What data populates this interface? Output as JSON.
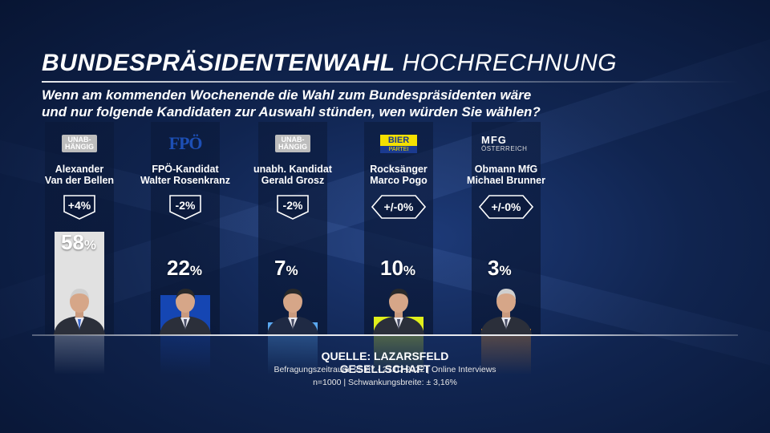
{
  "title": {
    "bold": "BUNDESPRÄSIDENTENWAHL",
    "light": "HOCHRECHNUNG"
  },
  "question": [
    "Wenn am kommenden Wochenende die Wahl zum Bundespräsidenten wäre",
    "und nur folgende Kandidaten zur Auswahl stünden, wen würden Sie wählen?"
  ],
  "candidates": [
    {
      "logo": {
        "type": "unabhaengig",
        "line1": "UNAB-",
        "line2": "HÄNGIG"
      },
      "name1": "Alexander",
      "name2": "Van der Bellen",
      "change": "+4%",
      "change_shape": "shield",
      "value": 58,
      "value_text": "58",
      "color": "#e1e1e1",
      "portrait": "grey-haired-man-in-suit-icon"
    },
    {
      "logo": {
        "type": "fpo",
        "text": "FPÖ"
      },
      "name1": "FPÖ-Kandidat",
      "name2": "Walter Rosenkranz",
      "change": "-2%",
      "change_shape": "shield",
      "value": 22,
      "value_text": "22",
      "color": "#1546b3",
      "portrait": "man-in-dark-suit-icon"
    },
    {
      "logo": {
        "type": "unabhaengig",
        "line1": "UNAB-",
        "line2": "HÄNGIG"
      },
      "name1": "unabh. Kandidat",
      "name2": "Gerald Grosz",
      "change": "-2%",
      "change_shape": "shield",
      "value": 7,
      "value_text": "7",
      "color": "#5aa8f0",
      "portrait": "man-in-dark-suit-icon"
    },
    {
      "logo": {
        "type": "bier",
        "top": "BIER",
        "bottom": "PARTEI"
      },
      "name1": "Rocksänger",
      "name2": "Marco Pogo",
      "change": "+/-0%",
      "change_shape": "hexagon",
      "value": 10,
      "value_text": "10",
      "color": "#e0ef1b",
      "portrait": "man-with-sunglasses-icon"
    },
    {
      "logo": {
        "type": "mfg",
        "top": "MFG",
        "bottom": "ÖSTERREICH"
      },
      "name1": "Obmann MfG",
      "name2": "Michael Brunner",
      "change": "+/-0%",
      "change_shape": "hexagon",
      "value": 3,
      "value_text": "3",
      "color": "#f2901c",
      "portrait": "grey-haired-man-in-suit-icon"
    }
  ],
  "percent_sign": "%",
  "source": {
    "label": "QUELLE:  LAZARSFELD GESELLSCHAFT",
    "period": "Befragungszeitraum: 25.07.- 27.07.2022 | Online Interviews",
    "sample": "n=1000 |  Schwankungsbreite: ± 3,16%"
  },
  "chart_data": {
    "type": "bar",
    "title": "BUNDESPRÄSIDENTENWAHL HOCHRECHNUNG",
    "categories": [
      "Alexander Van der Bellen",
      "Walter Rosenkranz",
      "Gerald Grosz",
      "Marco Pogo",
      "Michael Brunner"
    ],
    "values": [
      58,
      22,
      7,
      10,
      3
    ],
    "changes": [
      "+4%",
      "-2%",
      "-2%",
      "+/-0%",
      "+/-0%"
    ],
    "unit": "%",
    "ylim": [
      0,
      58
    ],
    "grid": false,
    "legend": "none"
  }
}
